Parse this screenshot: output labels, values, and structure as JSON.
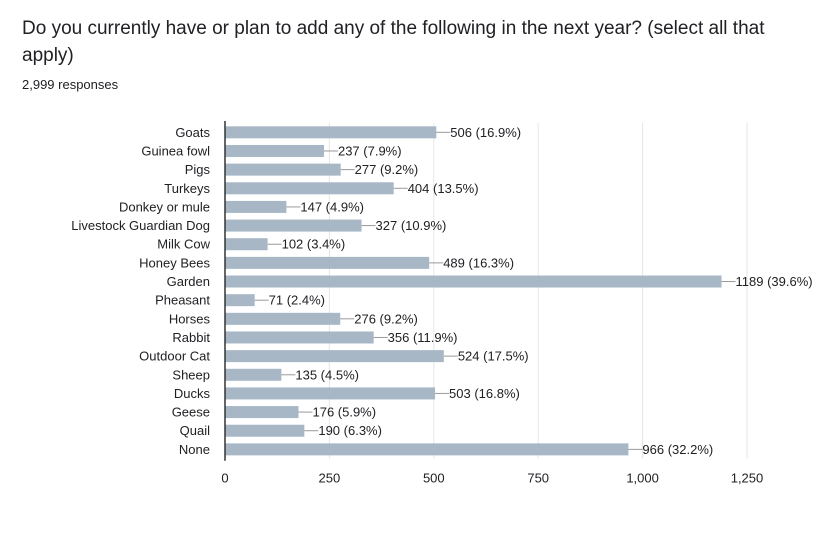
{
  "question": {
    "title": "Do you currently have or plan to add any of the following in the next year? (select all that apply)",
    "responses": "2,999 responses"
  },
  "colors": {
    "bar": "#a7b7c6",
    "axis": "#333333",
    "grid": "#e6e6e6",
    "text": "#202124"
  },
  "chart_data": {
    "type": "bar",
    "orientation": "horizontal",
    "title": "Do you currently have or plan to add any of the following in the next year? (select all that apply)",
    "xlabel": "",
    "ylabel": "",
    "xlim": [
      0,
      1250
    ],
    "grid": true,
    "legend": "none",
    "xticks": [
      0,
      250,
      500,
      750,
      1000,
      1250
    ],
    "xtick_labels": [
      "0",
      "250",
      "500",
      "750",
      "1,000",
      "1,250"
    ],
    "categories": [
      "Goats",
      "Guinea fowl",
      "Pigs",
      "Turkeys",
      "Donkey or mule",
      "Livestock Guardian Dog",
      "Milk Cow",
      "Honey Bees",
      "Garden",
      "Pheasant",
      "Horses",
      "Rabbit",
      "Outdoor Cat",
      "Sheep",
      "Ducks",
      "Geese",
      "Quail",
      "None"
    ],
    "values": [
      506,
      237,
      277,
      404,
      147,
      327,
      102,
      489,
      1189,
      71,
      276,
      356,
      524,
      135,
      503,
      176,
      190,
      966
    ],
    "data_labels": [
      "506 (16.9%)",
      "237 (7.9%)",
      "277 (9.2%)",
      "404 (13.5%)",
      "147 (4.9%)",
      "327 (10.9%)",
      "102 (3.4%)",
      "489 (16.3%)",
      "1189 (39.6%)",
      "71 (2.4%)",
      "276 (9.2%)",
      "356 (11.9%)",
      "524 (17.5%)",
      "135 (4.5%)",
      "503 (16.8%)",
      "176 (5.9%)",
      "190 (6.3%)",
      "966 (32.2%)"
    ]
  }
}
